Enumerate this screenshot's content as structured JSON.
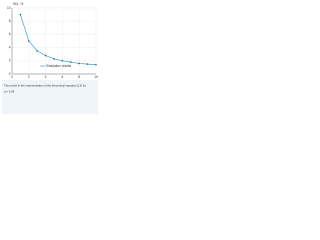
{
  "chart_data": {
    "type": "line",
    "y_label": "W/L, %",
    "x": [
      1,
      2,
      3,
      4,
      5,
      6,
      7,
      8,
      9,
      10
    ],
    "series": [
      {
        "name": "Simulation results",
        "color": "#3b9fd4",
        "values": [
          9,
          5,
          3.5,
          2.8,
          2.3,
          2.0,
          1.8,
          1.6,
          1.5,
          1.4
        ]
      }
    ],
    "xlim": [
      0,
      10
    ],
    "xticks": [
      0,
      2,
      4,
      6,
      8,
      10
    ],
    "ylim": [
      0,
      10
    ],
    "yticks": [
      0,
      2,
      4,
      6,
      8,
      10
    ],
    "grid": true,
    "caption": [
      "The points in the representation of the theoretical equation (13) for",
      "q = 3.09"
    ]
  }
}
